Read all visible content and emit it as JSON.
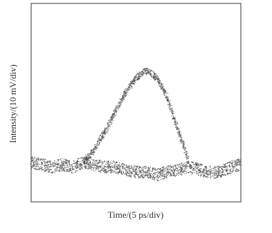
{
  "chart_data": {
    "type": "line",
    "xlabel": "Time/(5 ps/div)",
    "ylabel": "Intensity/(10 mV/div)",
    "x": [
      0,
      0.5,
      1,
      1.5,
      2,
      2.5,
      3,
      3.5,
      4,
      4.5,
      5,
      5.5,
      6,
      6.5,
      7,
      7.5,
      8,
      8.5,
      9,
      9.5,
      10
    ],
    "xlim": [
      0,
      10
    ],
    "ylim": [
      0,
      8
    ],
    "series": [
      {
        "color": "#444444",
        "values": [
          null,
          null,
          null,
          null,
          null,
          1.6,
          2.1,
          2.8,
          3.6,
          4.4,
          5.0,
          5.3,
          5.0,
          4.2,
          2.9,
          1.7,
          null,
          null,
          null,
          null,
          null
        ]
      },
      {
        "color": "#444444",
        "values": [
          1.6,
          1.5,
          1.4,
          1.5,
          1.4,
          1.6,
          1.5,
          1.4,
          1.4,
          1.3,
          1.2,
          1.2,
          1.1,
          1.2,
          1.3,
          1.4,
          1.3,
          1.2,
          1.2,
          1.4,
          1.5
        ]
      }
    ]
  }
}
